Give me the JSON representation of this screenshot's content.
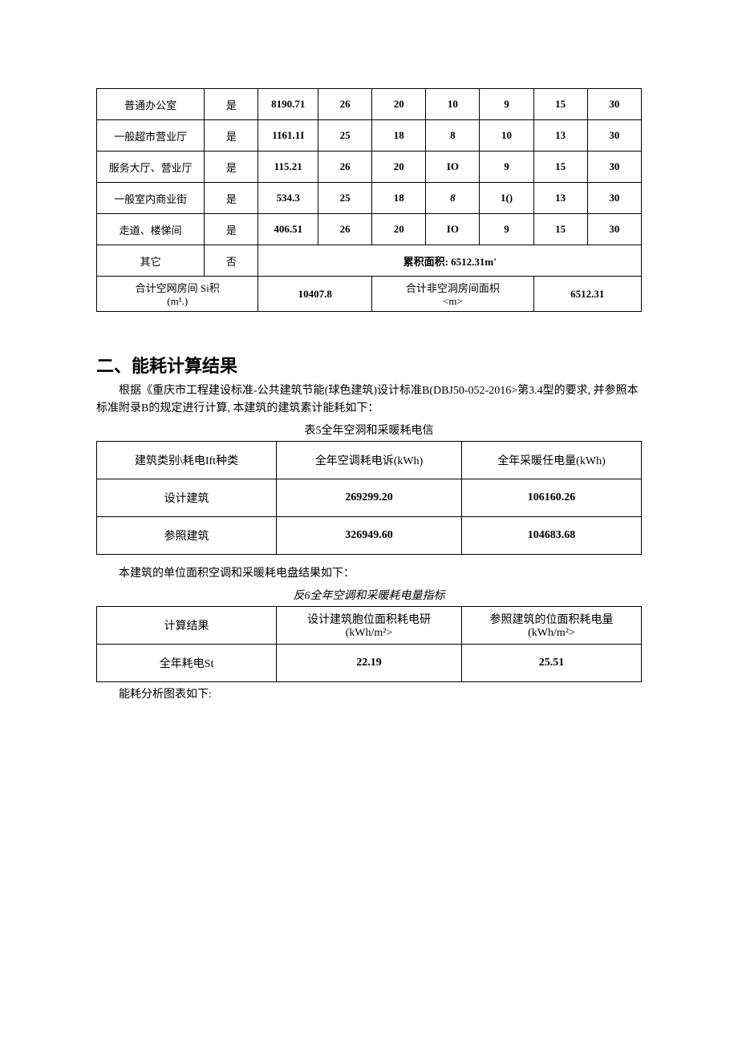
{
  "table1": {
    "colors": {
      "border": "#000000",
      "background": "#ffffff",
      "text": "#000000"
    },
    "rows": [
      {
        "cells": [
          "普通办公室",
          "是",
          "8190.71",
          "26",
          "20",
          "10",
          "9",
          "15",
          "30"
        ]
      },
      {
        "cells": [
          "一般超市营业厅",
          "是",
          "1161.1I",
          "25",
          "18",
          "8",
          "10",
          "13",
          "30"
        ]
      },
      {
        "cells": [
          "服务大厅、营业厅",
          "是",
          "115.21",
          "26",
          "20",
          "IO",
          "9",
          "15",
          "30"
        ]
      },
      {
        "cells": [
          "一般室内商业街",
          "是",
          "534.3",
          "25",
          "18",
          "8",
          "1()",
          "13",
          "30"
        ],
        "italic_idx": 5
      },
      {
        "cells": [
          "走道、楼悌间",
          "是",
          "406.51",
          "26",
          "20",
          "IO",
          "9",
          "15",
          "30"
        ]
      }
    ],
    "other_row": {
      "label": "其它",
      "ac": "否",
      "merged_text": "累积面积: 6512.31m'"
    },
    "total_row": {
      "label_left": "合计空网房间  Si积\n(m¹.)",
      "val_left": "10407.8",
      "label_right": "合计非空洞房间面枳\n<m>",
      "val_right": "6512.31"
    },
    "col_widths": [
      "18%",
      "9%",
      "10%",
      "9%",
      "9%",
      "9%",
      "9%",
      "9%",
      "9%"
    ]
  },
  "section2": {
    "heading": "二、能耗计算结果",
    "para1": "根据《重庆市工程建设标准-公共建筑节能(球色建筑)设计标准B(DBJ50-052-2016>第3.4型的要求, 并参照本标准附录B的规定进行计算, 本建筑的建筑素计能耗如下：",
    "caption5": "表5全年空洞和采暖耗电信",
    "table5": {
      "headers": [
        "建筑类别\\耗电Ift种类",
        "全年空调耗电诉(kWh)",
        "全年采暖任电量(kWh)"
      ],
      "rows": [
        [
          "设计建筑",
          "269299.20",
          "106160.26"
        ],
        [
          "参照建筑",
          "326949.60",
          "104683.68"
        ]
      ],
      "col_widths": [
        "33%",
        "34%",
        "33%"
      ]
    },
    "sub_note": "本建筑的单位面积空调和采暖耗电盘结果如下：",
    "caption6": "反6全年空调和采暖耗电量指标",
    "table6": {
      "headers": [
        "计算结果",
        "设计建筑胞位面积耗电研\n(kWh/m²>",
        "参照建筑的位面积耗电量\n(kWh/m²>"
      ],
      "rows": [
        [
          "全年耗电St",
          "22.19",
          "25.51"
        ]
      ],
      "col_widths": [
        "33%",
        "34%",
        "33%"
      ]
    },
    "final_note": "能耗分析图表如下:"
  }
}
